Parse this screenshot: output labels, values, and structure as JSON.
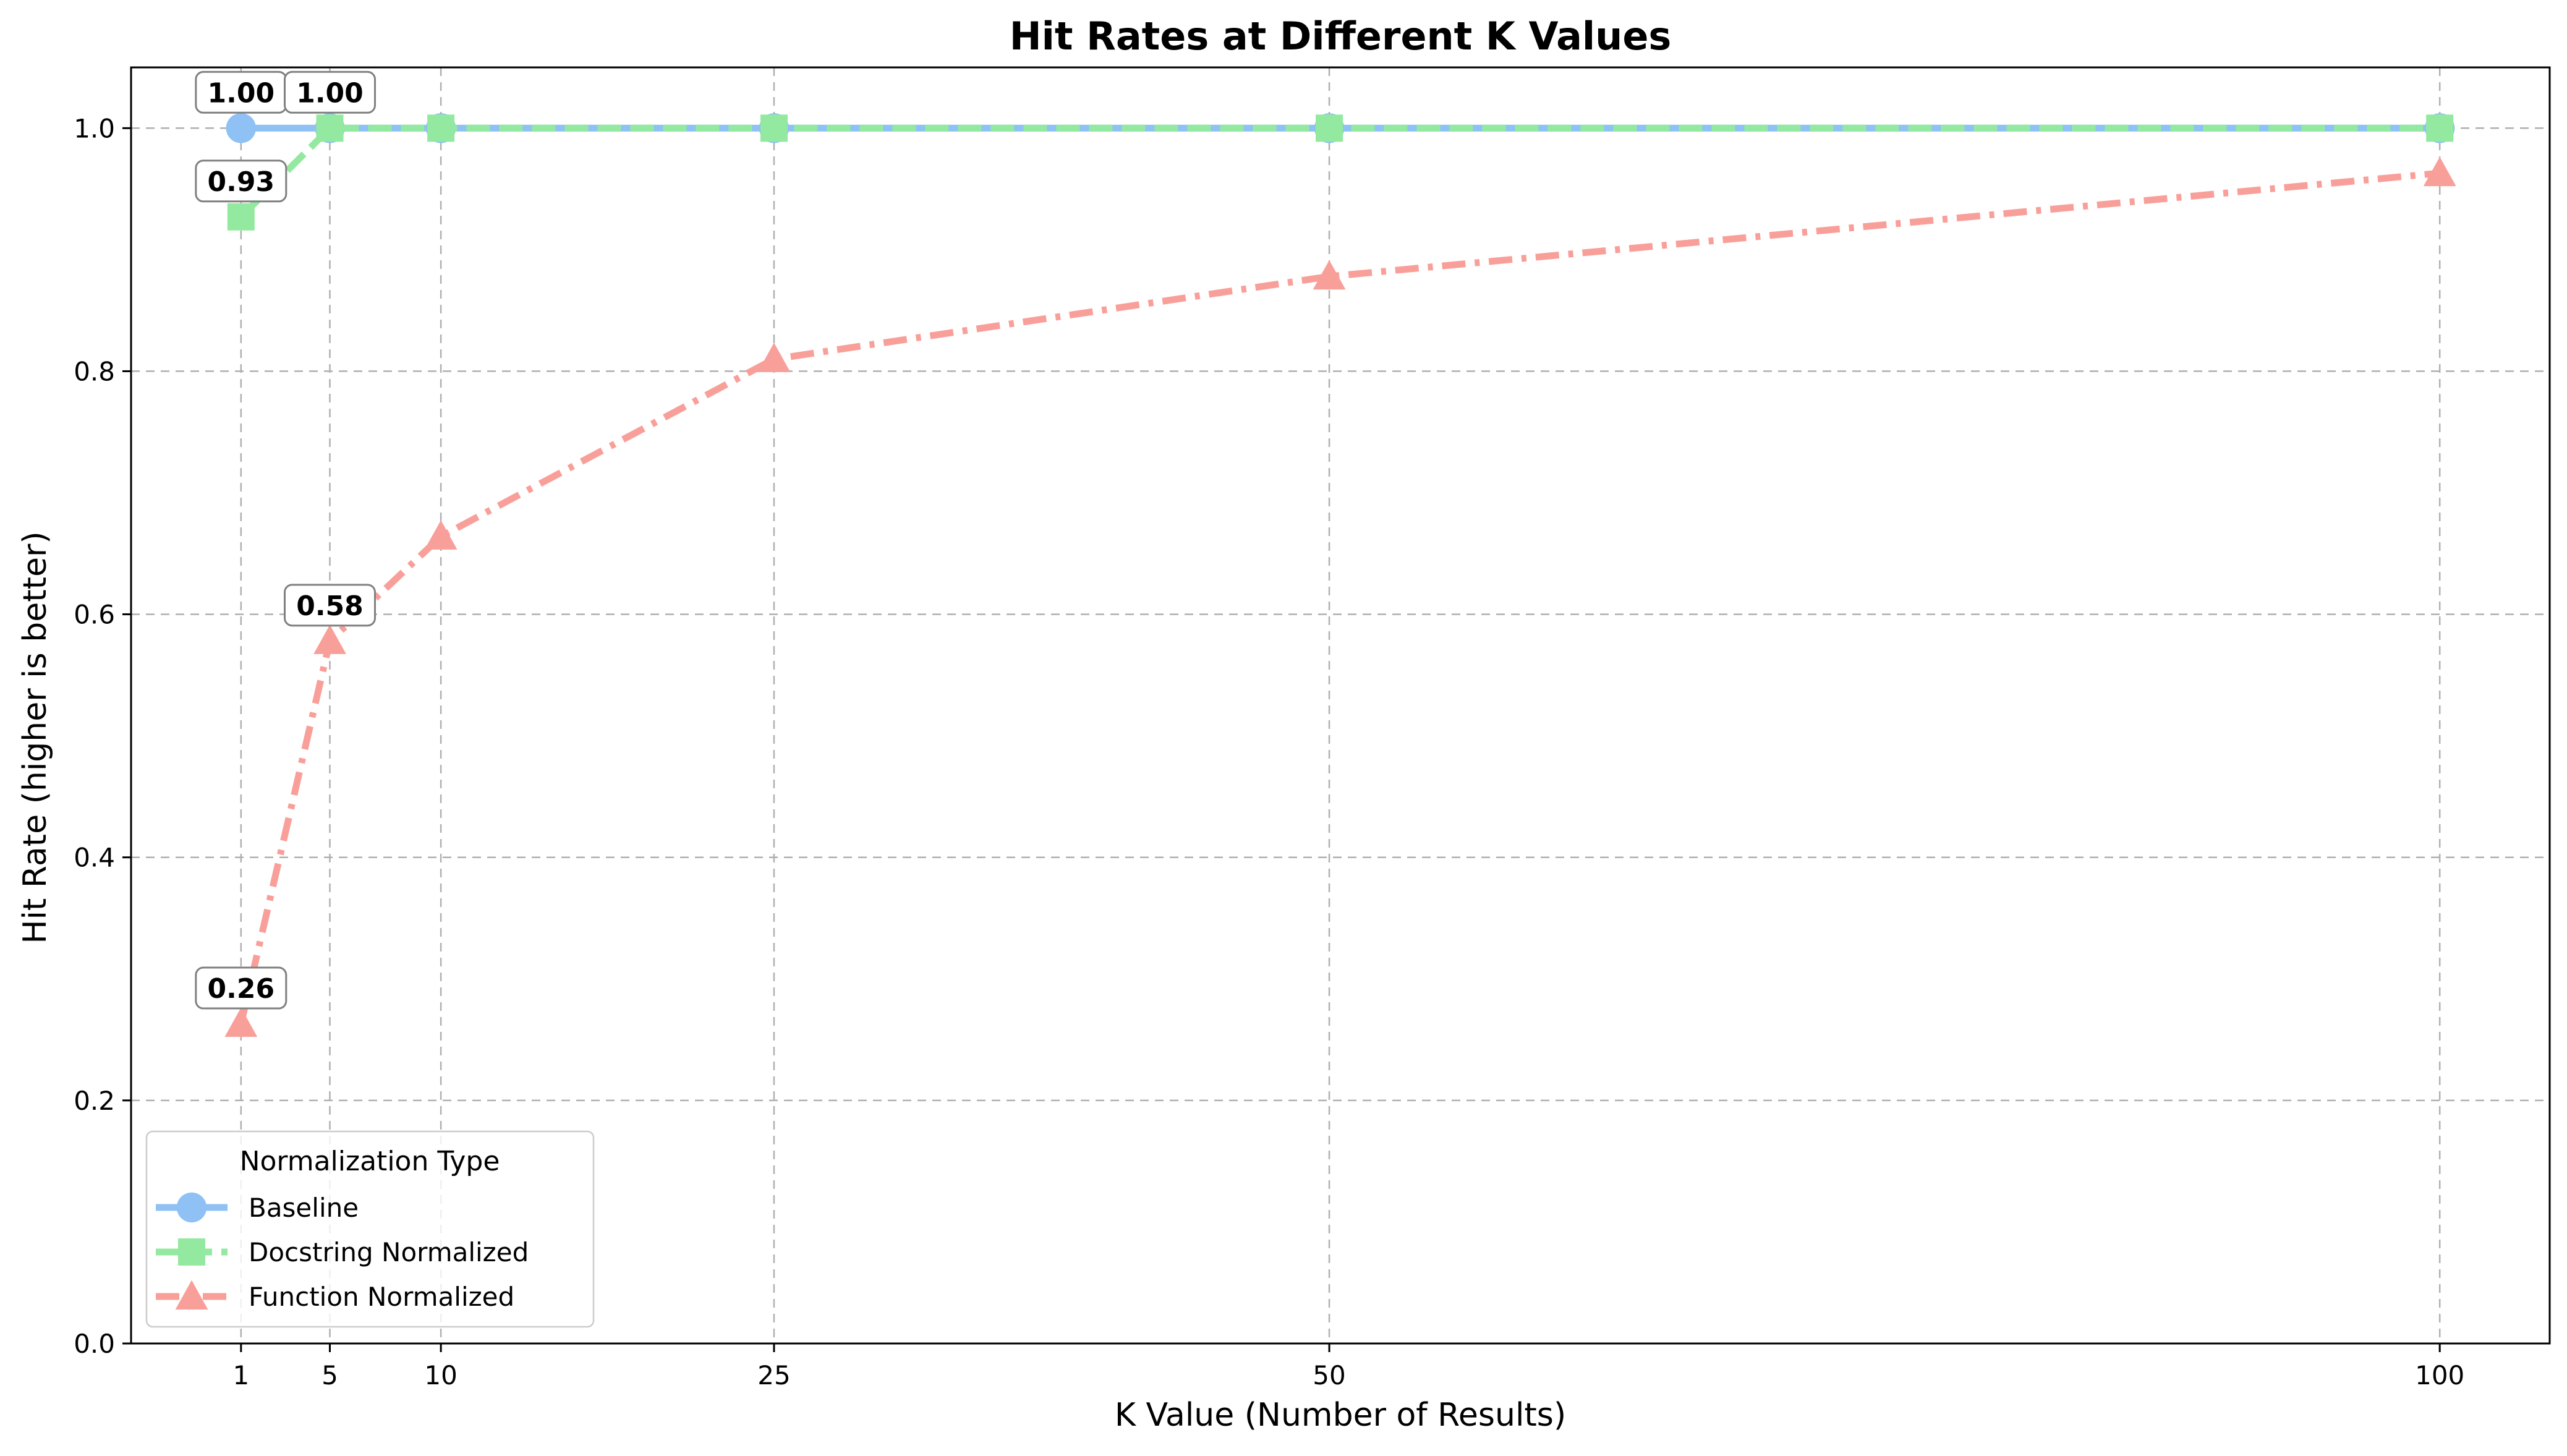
{
  "chart_data": {
    "type": "line",
    "title": "Hit Rates at Different K Values",
    "xlabel": "K Value (Number of Results)",
    "ylabel": "Hit Rate (higher is better)",
    "x": [
      1,
      5,
      10,
      25,
      50,
      100
    ],
    "x_ticks": [
      "1",
      "5",
      "10",
      "25",
      "50",
      "100"
    ],
    "xlim": [
      -3.95,
      104.95
    ],
    "ylim": [
      0,
      1.05
    ],
    "y_ticks": [
      "0.0",
      "0.2",
      "0.4",
      "0.6",
      "0.8",
      "1.0"
    ],
    "grid": true,
    "legend": {
      "title": "Normalization Type",
      "position": "lower-left"
    },
    "series": [
      {
        "name": "Baseline",
        "values": [
          1.0,
          1.0,
          1.0,
          1.0,
          1.0,
          1.0
        ],
        "color": "#8fc1f5",
        "marker": "circle",
        "linestyle": "solid"
      },
      {
        "name": "Docstring Normalized",
        "values": [
          0.927,
          1.0,
          1.0,
          1.0,
          1.0,
          1.0
        ],
        "color": "#93e9a0",
        "marker": "square",
        "linestyle": "dashed"
      },
      {
        "name": "Function Normalized",
        "values": [
          0.263,
          0.578,
          0.664,
          0.81,
          0.878,
          0.963
        ],
        "color": "#f99f9a",
        "marker": "triangle",
        "linestyle": "dashdot"
      }
    ],
    "annotations": [
      {
        "series": 0,
        "x": 1,
        "text": "1.00"
      },
      {
        "series": 1,
        "x": 1,
        "text": "0.93"
      },
      {
        "series": 1,
        "x": 5,
        "text": "1.00"
      },
      {
        "series": 2,
        "x": 1,
        "text": "0.26"
      },
      {
        "series": 2,
        "x": 5,
        "text": "0.58"
      }
    ]
  }
}
